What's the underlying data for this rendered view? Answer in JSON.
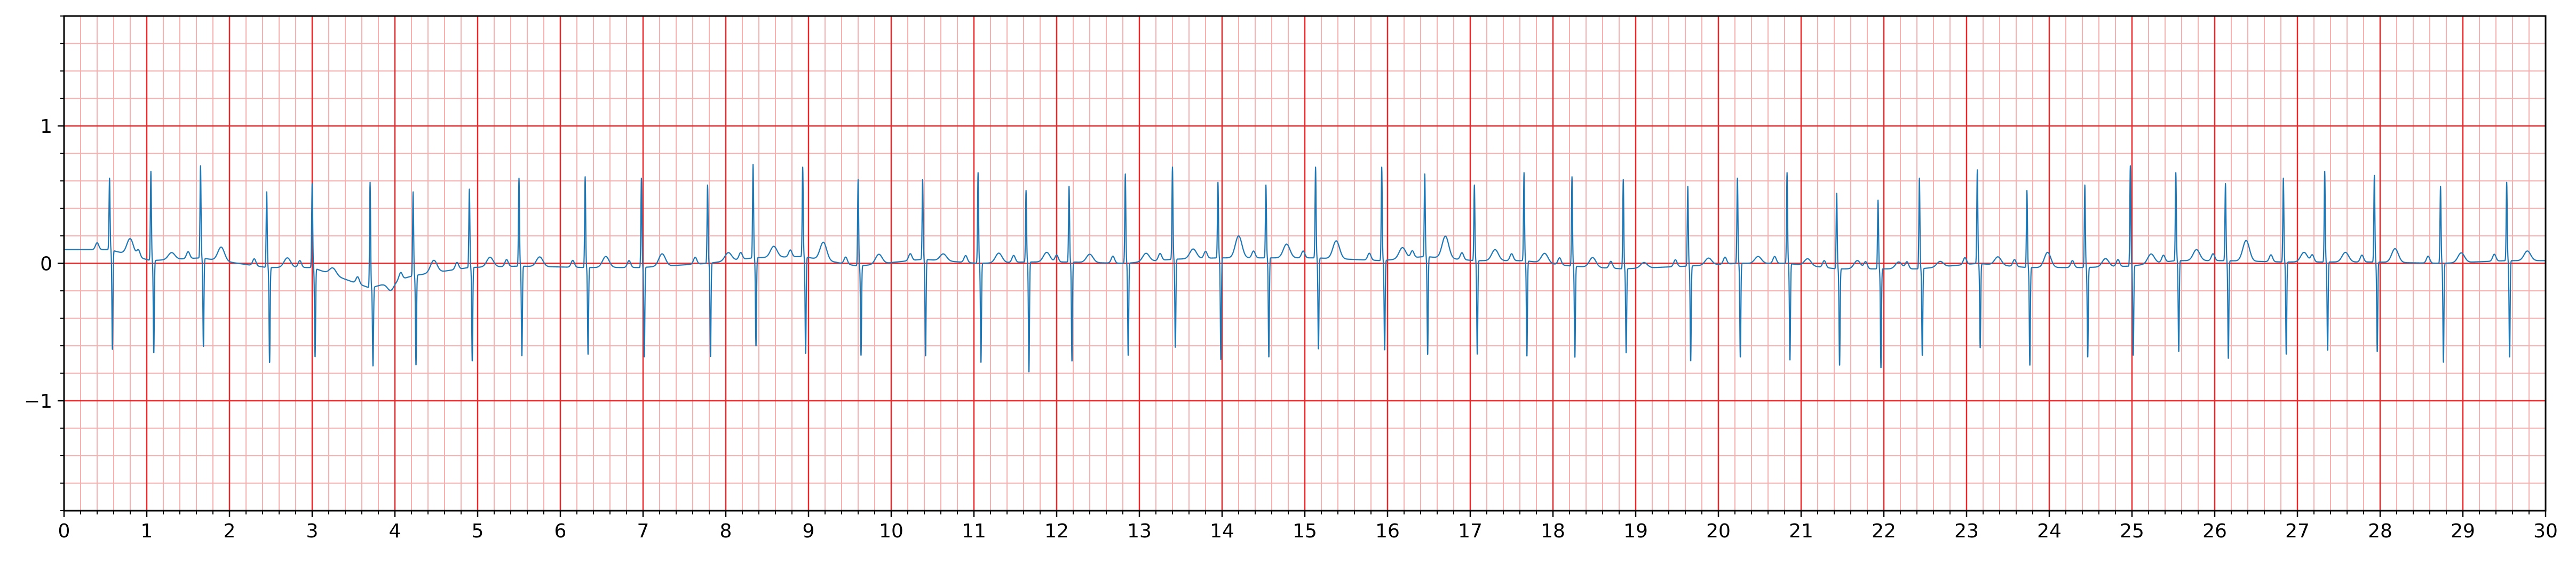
{
  "chart_data": {
    "type": "line",
    "title": "",
    "xlabel": "",
    "ylabel": "",
    "xlim": [
      0,
      30
    ],
    "ylim": [
      -1.8,
      1.8
    ],
    "x_ticks": [
      0,
      1,
      2,
      3,
      4,
      5,
      6,
      7,
      8,
      9,
      10,
      11,
      12,
      13,
      14,
      15,
      16,
      17,
      18,
      19,
      20,
      21,
      22,
      23,
      24,
      25,
      26,
      27,
      28,
      29,
      30
    ],
    "x_tick_labels": [
      "0",
      "1",
      "2",
      "3",
      "4",
      "5",
      "6",
      "7",
      "8",
      "9",
      "10",
      "11",
      "12",
      "13",
      "14",
      "15",
      "16",
      "17",
      "18",
      "19",
      "20",
      "21",
      "22",
      "23",
      "24",
      "25",
      "26",
      "27",
      "28",
      "29",
      "30"
    ],
    "y_ticks": [
      -1,
      0,
      1
    ],
    "y_tick_labels": [
      "−1",
      "0",
      "1"
    ],
    "grid": true,
    "grid_major": {
      "x_step": 1,
      "y_step": 1,
      "color": "#e8282a"
    },
    "grid_minor": {
      "x_step": 0.2,
      "y_step": 0.2,
      "color": "#f7b0b0"
    },
    "legend": "none",
    "series": [
      {
        "color": "#1f77b4",
        "sample_rate_hz": 50,
        "beats": [
          {
            "t": 0.55,
            "r": 0.62,
            "s": -0.63,
            "st": 0.1,
            "tw": 0.12
          },
          {
            "t": 1.05,
            "r": 0.67,
            "s": -0.66,
            "st": 0.02,
            "tw": 0.05
          },
          {
            "t": 1.65,
            "r": 0.71,
            "s": -0.61,
            "st": 0.04,
            "tw": 0.1
          },
          {
            "t": 2.45,
            "r": 0.52,
            "s": -0.73,
            "st": -0.03,
            "tw": 0.07
          },
          {
            "t": 3.0,
            "r": 0.58,
            "s": -0.68,
            "st": -0.03,
            "tw": 0.05
          },
          {
            "t": 3.7,
            "r": 0.59,
            "s": -0.76,
            "st": -0.18,
            "tw": -0.06
          },
          {
            "t": 4.22,
            "r": 0.52,
            "s": -0.75,
            "st": -0.09,
            "tw": 0.09
          },
          {
            "t": 4.9,
            "r": 0.54,
            "s": -0.72,
            "st": -0.03,
            "tw": 0.07
          },
          {
            "t": 5.5,
            "r": 0.62,
            "s": -0.68,
            "st": -0.02,
            "tw": 0.07
          },
          {
            "t": 6.3,
            "r": 0.63,
            "s": -0.67,
            "st": -0.03,
            "tw": 0.08
          },
          {
            "t": 6.98,
            "r": 0.62,
            "s": -0.69,
            "st": -0.03,
            "tw": 0.09
          },
          {
            "t": 7.78,
            "r": 0.57,
            "s": -0.69,
            "st": 0.0,
            "tw": 0.06
          },
          {
            "t": 8.33,
            "r": 0.72,
            "s": -0.61,
            "st": 0.04,
            "tw": 0.08
          },
          {
            "t": 8.93,
            "r": 0.7,
            "s": -0.66,
            "st": 0.05,
            "tw": 0.13
          },
          {
            "t": 9.6,
            "r": 0.61,
            "s": -0.68,
            "st": -0.02,
            "tw": 0.07
          },
          {
            "t": 10.38,
            "r": 0.61,
            "s": -0.68,
            "st": 0.03,
            "tw": 0.05
          },
          {
            "t": 11.05,
            "r": 0.66,
            "s": -0.73,
            "st": 0.0,
            "tw": 0.07
          },
          {
            "t": 11.63,
            "r": 0.53,
            "s": -0.8,
            "st": 0.01,
            "tw": 0.07
          },
          {
            "t": 12.15,
            "r": 0.56,
            "s": -0.72,
            "st": 0.01,
            "tw": 0.06
          },
          {
            "t": 12.83,
            "r": 0.65,
            "s": -0.68,
            "st": 0.0,
            "tw": 0.06
          },
          {
            "t": 13.4,
            "r": 0.7,
            "s": -0.62,
            "st": 0.03,
            "tw": 0.07
          },
          {
            "t": 13.95,
            "r": 0.59,
            "s": -0.71,
            "st": 0.04,
            "tw": 0.16
          },
          {
            "t": 14.53,
            "r": 0.57,
            "s": -0.69,
            "st": 0.04,
            "tw": 0.1
          },
          {
            "t": 15.13,
            "r": 0.7,
            "s": -0.63,
            "st": 0.04,
            "tw": 0.13
          },
          {
            "t": 15.93,
            "r": 0.7,
            "s": -0.64,
            "st": 0.02,
            "tw": 0.08
          },
          {
            "t": 16.45,
            "r": 0.65,
            "s": -0.67,
            "st": 0.05,
            "tw": 0.16
          },
          {
            "t": 17.05,
            "r": 0.57,
            "s": -0.67,
            "st": 0.02,
            "tw": 0.08
          },
          {
            "t": 17.65,
            "r": 0.66,
            "s": -0.68,
            "st": 0.02,
            "tw": 0.07
          },
          {
            "t": 18.23,
            "r": 0.63,
            "s": -0.69,
            "st": -0.02,
            "tw": 0.07
          },
          {
            "t": 18.85,
            "r": 0.61,
            "s": -0.66,
            "st": -0.04,
            "tw": 0.04
          },
          {
            "t": 19.63,
            "r": 0.56,
            "s": -0.72,
            "st": -0.02,
            "tw": 0.05
          },
          {
            "t": 20.23,
            "r": 0.62,
            "s": -0.69,
            "st": 0.0,
            "tw": 0.05
          },
          {
            "t": 20.83,
            "r": 0.66,
            "s": -0.71,
            "st": 0.0,
            "tw": 0.05
          },
          {
            "t": 21.43,
            "r": 0.51,
            "s": -0.75,
            "st": -0.04,
            "tw": 0.06
          },
          {
            "t": 21.93,
            "r": 0.46,
            "s": -0.77,
            "st": -0.04,
            "tw": 0.05
          },
          {
            "t": 22.43,
            "r": 0.62,
            "s": -0.68,
            "st": -0.04,
            "tw": 0.04
          },
          {
            "t": 23.13,
            "r": 0.68,
            "s": -0.62,
            "st": 0.0,
            "tw": 0.06
          },
          {
            "t": 23.73,
            "r": 0.53,
            "s": -0.75,
            "st": -0.03,
            "tw": 0.11
          },
          {
            "t": 24.43,
            "r": 0.57,
            "s": -0.69,
            "st": -0.03,
            "tw": 0.06
          },
          {
            "t": 24.98,
            "r": 0.71,
            "s": -0.68,
            "st": -0.02,
            "tw": 0.07
          },
          {
            "t": 25.53,
            "r": 0.66,
            "s": -0.65,
            "st": 0.02,
            "tw": 0.08
          },
          {
            "t": 26.13,
            "r": 0.58,
            "s": -0.7,
            "st": 0.02,
            "tw": 0.15
          },
          {
            "t": 26.83,
            "r": 0.62,
            "s": -0.67,
            "st": 0.01,
            "tw": 0.07
          },
          {
            "t": 27.33,
            "r": 0.67,
            "s": -0.64,
            "st": 0.01,
            "tw": 0.07
          },
          {
            "t": 27.93,
            "r": 0.64,
            "s": -0.65,
            "st": 0.01,
            "tw": 0.1
          },
          {
            "t": 28.73,
            "r": 0.56,
            "s": -0.73,
            "st": 0.0,
            "tw": 0.07
          },
          {
            "t": 29.53,
            "r": 0.59,
            "s": -0.69,
            "st": 0.02,
            "tw": 0.07
          }
        ]
      }
    ]
  }
}
